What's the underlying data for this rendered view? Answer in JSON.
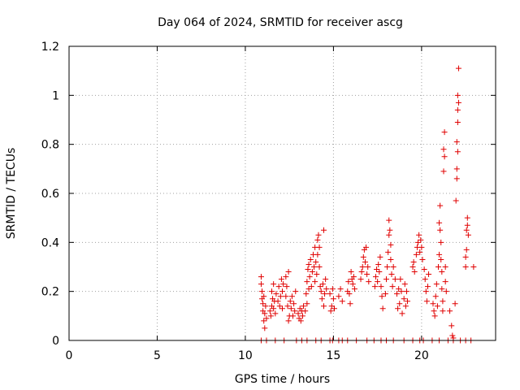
{
  "chart_data": {
    "type": "scatter",
    "title": "Day 064 of 2024, SRMTID for receiver ascg",
    "xlabel": "GPS time / hours",
    "ylabel": "SRMTID / TECUs",
    "xlim": [
      0,
      24.2
    ],
    "ylim": [
      0,
      1.2
    ],
    "x_ticks": [
      0,
      5,
      10,
      15,
      20
    ],
    "y_ticks": [
      0,
      0.2,
      0.4,
      0.6,
      0.8,
      1,
      1.2
    ],
    "x_tick_labels": [
      "0",
      "5",
      "10",
      "15",
      "20"
    ],
    "y_tick_labels": [
      "0",
      "0.2",
      "0.4",
      "0.6",
      "0.8",
      "1",
      "1.2"
    ],
    "grid": true,
    "marker": "+",
    "color": "#e00000",
    "series": [
      {
        "name": "SRMTID",
        "points": [
          [
            10.9,
            0.26
          ],
          [
            10.9,
            0.23
          ],
          [
            10.95,
            0.2
          ],
          [
            10.95,
            0.17
          ],
          [
            11.0,
            0.15
          ],
          [
            11.0,
            0.12
          ],
          [
            11.05,
            0.18
          ],
          [
            11.05,
            0.08
          ],
          [
            11.1,
            0.05
          ],
          [
            11.1,
            0.11
          ],
          [
            11.15,
            0.14
          ],
          [
            11.2,
            0.09
          ],
          [
            11.4,
            0.12
          ],
          [
            11.45,
            0.1
          ],
          [
            11.5,
            0.14
          ],
          [
            11.5,
            0.2
          ],
          [
            11.55,
            0.17
          ],
          [
            11.6,
            0.23
          ],
          [
            11.6,
            0.13
          ],
          [
            11.65,
            0.16
          ],
          [
            11.7,
            0.11
          ],
          [
            11.75,
            0.19
          ],
          [
            11.85,
            0.16
          ],
          [
            11.9,
            0.22
          ],
          [
            11.95,
            0.14
          ],
          [
            12.0,
            0.18
          ],
          [
            12.05,
            0.25
          ],
          [
            12.1,
            0.2
          ],
          [
            12.1,
            0.13
          ],
          [
            12.15,
            0.23
          ],
          [
            12.3,
            0.18
          ],
          [
            12.3,
            0.26
          ],
          [
            12.35,
            0.22
          ],
          [
            12.4,
            0.14
          ],
          [
            12.45,
            0.28
          ],
          [
            12.45,
            0.08
          ],
          [
            12.5,
            0.1
          ],
          [
            12.55,
            0.16
          ],
          [
            12.6,
            0.13
          ],
          [
            12.65,
            0.18
          ],
          [
            12.7,
            0.1
          ],
          [
            12.75,
            0.15
          ],
          [
            12.8,
            0.12
          ],
          [
            12.85,
            0.2
          ],
          [
            13.0,
            0.11
          ],
          [
            13.05,
            0.09
          ],
          [
            13.1,
            0.13
          ],
          [
            13.15,
            0.08
          ],
          [
            13.2,
            0.12
          ],
          [
            13.25,
            0.1
          ],
          [
            13.3,
            0.14
          ],
          [
            13.4,
            0.12
          ],
          [
            13.45,
            0.19
          ],
          [
            13.5,
            0.15
          ],
          [
            13.5,
            0.24
          ],
          [
            13.55,
            0.29
          ],
          [
            13.6,
            0.21
          ],
          [
            13.6,
            0.31
          ],
          [
            13.65,
            0.26
          ],
          [
            13.7,
            0.33
          ],
          [
            13.75,
            0.22
          ],
          [
            13.8,
            0.28
          ],
          [
            13.85,
            0.35
          ],
          [
            13.9,
            0.3
          ],
          [
            13.95,
            0.38
          ],
          [
            13.95,
            0.24
          ],
          [
            14.0,
            0.32
          ],
          [
            14.05,
            0.27
          ],
          [
            14.1,
            0.41
          ],
          [
            14.1,
            0.35
          ],
          [
            14.15,
            0.43
          ],
          [
            14.2,
            0.38
          ],
          [
            14.2,
            0.3
          ],
          [
            14.25,
            0.22
          ],
          [
            14.3,
            0.2
          ],
          [
            14.35,
            0.17
          ],
          [
            14.4,
            0.23
          ],
          [
            14.45,
            0.14
          ],
          [
            14.45,
            0.45
          ],
          [
            14.5,
            0.19
          ],
          [
            14.55,
            0.25
          ],
          [
            14.6,
            0.21
          ],
          [
            14.8,
            0.19
          ],
          [
            14.85,
            0.12
          ],
          [
            14.9,
            0.14
          ],
          [
            14.95,
            0.21
          ],
          [
            15.0,
            0.17
          ],
          [
            15.05,
            0.13
          ],
          [
            15.3,
            0.18
          ],
          [
            15.4,
            0.21
          ],
          [
            15.5,
            0.16
          ],
          [
            15.8,
            0.2
          ],
          [
            15.85,
            0.24
          ],
          [
            15.9,
            0.19
          ],
          [
            15.95,
            0.15
          ],
          [
            16.0,
            0.28
          ],
          [
            16.05,
            0.25
          ],
          [
            16.1,
            0.23
          ],
          [
            16.15,
            0.26
          ],
          [
            16.2,
            0.21
          ],
          [
            16.55,
            0.25
          ],
          [
            16.6,
            0.28
          ],
          [
            16.65,
            0.3
          ],
          [
            16.7,
            0.34
          ],
          [
            16.75,
            0.37
          ],
          [
            16.8,
            0.32
          ],
          [
            16.85,
            0.38
          ],
          [
            16.9,
            0.27
          ],
          [
            16.95,
            0.3
          ],
          [
            17.0,
            0.24
          ],
          [
            17.35,
            0.22
          ],
          [
            17.4,
            0.26
          ],
          [
            17.45,
            0.29
          ],
          [
            17.5,
            0.24
          ],
          [
            17.55,
            0.31
          ],
          [
            17.6,
            0.28
          ],
          [
            17.65,
            0.34
          ],
          [
            17.7,
            0.22
          ],
          [
            17.75,
            0.18
          ],
          [
            17.8,
            0.13
          ],
          [
            17.95,
            0.19
          ],
          [
            18.0,
            0.25
          ],
          [
            18.05,
            0.3
          ],
          [
            18.1,
            0.36
          ],
          [
            18.15,
            0.43
          ],
          [
            18.15,
            0.49
          ],
          [
            18.2,
            0.45
          ],
          [
            18.25,
            0.39
          ],
          [
            18.25,
            0.33
          ],
          [
            18.3,
            0.27
          ],
          [
            18.35,
            0.22
          ],
          [
            18.4,
            0.3
          ],
          [
            18.5,
            0.25
          ],
          [
            18.6,
            0.19
          ],
          [
            18.65,
            0.13
          ],
          [
            18.7,
            0.21
          ],
          [
            18.75,
            0.15
          ],
          [
            18.8,
            0.25
          ],
          [
            18.85,
            0.2
          ],
          [
            18.9,
            0.11
          ],
          [
            19.0,
            0.17
          ],
          [
            19.05,
            0.23
          ],
          [
            19.1,
            0.14
          ],
          [
            19.15,
            0.2
          ],
          [
            19.2,
            0.16
          ],
          [
            19.5,
            0.3
          ],
          [
            19.55,
            0.32
          ],
          [
            19.6,
            0.28
          ],
          [
            19.7,
            0.35
          ],
          [
            19.75,
            0.38
          ],
          [
            19.8,
            0.4
          ],
          [
            19.85,
            0.43
          ],
          [
            19.9,
            0.36
          ],
          [
            19.95,
            0.41
          ],
          [
            20.0,
            0.38
          ],
          [
            20.05,
            0.33
          ],
          [
            20.15,
            0.29
          ],
          [
            20.2,
            0.25
          ],
          [
            20.25,
            0.2
          ],
          [
            20.3,
            0.16
          ],
          [
            20.35,
            0.22
          ],
          [
            20.4,
            0.27
          ],
          [
            20.65,
            0.15
          ],
          [
            20.7,
            0.12
          ],
          [
            20.75,
            0.1
          ],
          [
            20.8,
            0.18
          ],
          [
            20.85,
            0.23
          ],
          [
            20.9,
            0.14
          ],
          [
            20.95,
            0.3
          ],
          [
            21.0,
            0.35
          ],
          [
            21.0,
            0.48
          ],
          [
            21.05,
            0.55
          ],
          [
            21.05,
            0.45
          ],
          [
            21.1,
            0.4
          ],
          [
            21.1,
            0.33
          ],
          [
            21.15,
            0.28
          ],
          [
            21.15,
            0.21
          ],
          [
            21.2,
            0.16
          ],
          [
            21.2,
            0.12
          ],
          [
            21.25,
            0.69
          ],
          [
            21.25,
            0.78
          ],
          [
            21.3,
            0.85
          ],
          [
            21.3,
            0.75
          ],
          [
            21.35,
            0.24
          ],
          [
            21.35,
            0.3
          ],
          [
            21.4,
            0.2
          ],
          [
            21.6,
            0.12
          ],
          [
            21.7,
            0.06
          ],
          [
            21.75,
            0.02
          ],
          [
            21.8,
            0.01
          ],
          [
            21.9,
            0.15
          ],
          [
            21.95,
            0.57
          ],
          [
            22.0,
            0.66
          ],
          [
            22.0,
            0.7
          ],
          [
            22.05,
            0.77
          ],
          [
            22.0,
            0.81
          ],
          [
            22.05,
            0.89
          ],
          [
            22.05,
            0.94
          ],
          [
            22.1,
            0.97
          ],
          [
            22.05,
            1.0
          ],
          [
            22.1,
            1.11
          ],
          [
            22.5,
            0.3
          ],
          [
            22.5,
            0.34
          ],
          [
            22.55,
            0.37
          ],
          [
            22.55,
            0.45
          ],
          [
            22.6,
            0.47
          ],
          [
            22.65,
            0.43
          ],
          [
            22.6,
            0.5
          ],
          [
            22.95,
            0.3
          ],
          [
            10.9,
            0.0
          ],
          [
            11.2,
            0.0
          ],
          [
            11.7,
            0.0
          ],
          [
            12.2,
            0.0
          ],
          [
            12.9,
            0.0
          ],
          [
            13.2,
            0.0
          ],
          [
            13.5,
            0.0
          ],
          [
            14.0,
            0.0
          ],
          [
            14.3,
            0.0
          ],
          [
            14.8,
            0.0
          ],
          [
            14.95,
            0.0
          ],
          [
            15.3,
            0.0
          ],
          [
            15.5,
            0.0
          ],
          [
            15.8,
            0.0
          ],
          [
            16.3,
            0.0
          ],
          [
            16.9,
            0.0
          ],
          [
            17.3,
            0.0
          ],
          [
            17.7,
            0.0
          ],
          [
            18.0,
            0.0
          ],
          [
            18.4,
            0.0
          ],
          [
            19.0,
            0.0
          ],
          [
            19.5,
            0.0
          ],
          [
            19.9,
            0.0
          ],
          [
            20.1,
            0.0
          ],
          [
            20.6,
            0.0
          ],
          [
            21.0,
            0.0
          ],
          [
            21.5,
            0.0
          ],
          [
            21.8,
            0.0
          ],
          [
            22.2,
            0.0
          ],
          [
            22.5,
            0.0
          ],
          [
            22.8,
            0.0
          ]
        ]
      }
    ]
  }
}
